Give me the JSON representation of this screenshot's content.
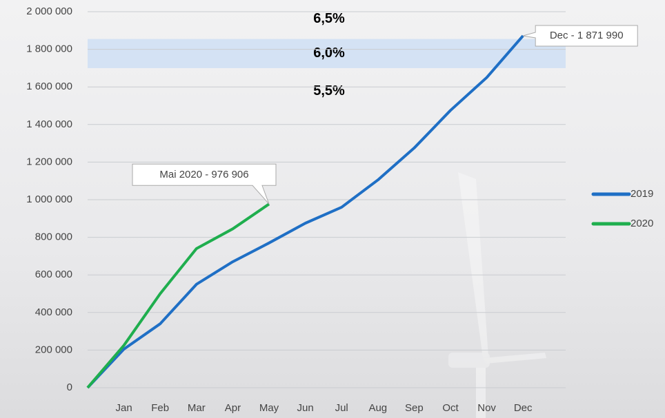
{
  "chart_data": {
    "type": "line",
    "categories": [
      null,
      "Jan",
      "Feb",
      "Mar",
      "Apr",
      "May",
      "Jun",
      "Jul",
      "Aug",
      "Sep",
      "Oct",
      "Nov",
      "Dec"
    ],
    "series": [
      {
        "name": "2019",
        "color": "#1f6fc5",
        "values": [
          0,
          205000,
          340000,
          550000,
          670000,
          770000,
          875000,
          960000,
          1105000,
          1275000,
          1475000,
          1650000,
          1871990
        ],
        "callout": "Dec - 1 871 990"
      },
      {
        "name": "2020",
        "color": "#1fae4e",
        "values": [
          0,
          225000,
          500000,
          740000,
          845000,
          976906,
          null,
          null,
          null,
          null,
          null,
          null,
          null
        ],
        "callout": "Mai 2020 - 976 906"
      }
    ],
    "ylim": [
      0,
      2000000
    ],
    "yticks": [
      0,
      {
        "value": 200000,
        "label": "200 000"
      },
      {
        "value": 400000,
        "label": "400 000"
      },
      {
        "value": 600000,
        "label": "600 000"
      },
      {
        "value": 800000,
        "label": "800 000"
      },
      {
        "value": 1000000,
        "label": "1 000 000"
      },
      {
        "value": 1200000,
        "label": "1 200 000"
      },
      {
        "value": 1400000,
        "label": "1 400 000"
      },
      {
        "value": 1600000,
        "label": "1 600 000"
      },
      {
        "value": 1800000,
        "label": "1 800 000"
      },
      {
        "value": 2000000,
        "label": "2 000 000"
      }
    ],
    "grid": true,
    "band": [
      1700000,
      1855000
    ],
    "band_color": "#d4e2f4",
    "band_labels": [
      "6,5%",
      "6,0%",
      "5,5%"
    ],
    "legend": "right"
  }
}
